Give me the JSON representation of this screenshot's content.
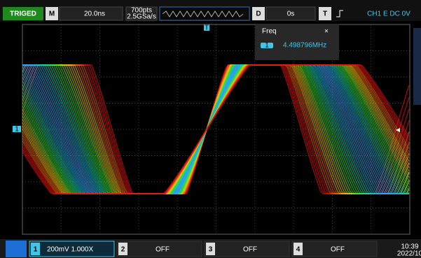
{
  "top_bar": {
    "status": "TRIGED",
    "timebase_label": "M",
    "timebase": "20.0ns",
    "memory_depth": "700pts",
    "sample_rate": "2.5GSa/s",
    "delay_label": "D",
    "delay": "0s",
    "trigger_label": "T",
    "trigger_info": "CH1 E DC 0V"
  },
  "measurement": {
    "title": "Freq",
    "close": "×",
    "channel": "1",
    "value": "4.498796MHz"
  },
  "markers": {
    "trigger": "T",
    "channel_1": "1"
  },
  "bottom_bar": {
    "channels": [
      {
        "number": "1",
        "setting": "200mV 1.000X"
      },
      {
        "number": "2",
        "setting": "OFF"
      },
      {
        "number": "3",
        "setting": "OFF"
      },
      {
        "number": "4",
        "setting": "OFF"
      }
    ],
    "time": "10:39",
    "date": "2022/10"
  }
}
